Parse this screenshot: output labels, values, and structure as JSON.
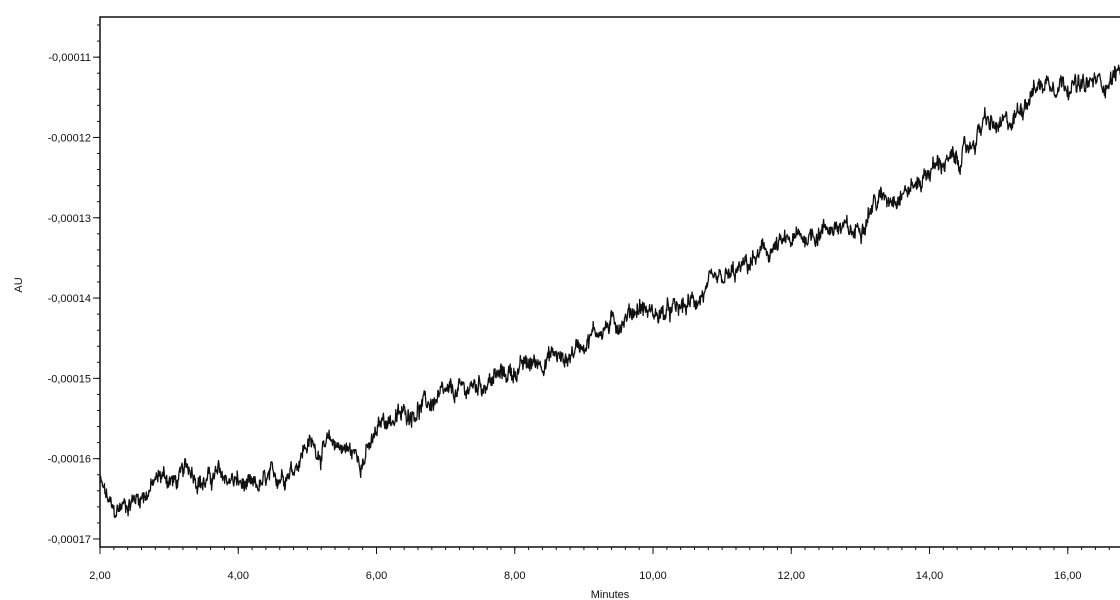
{
  "chart_data": {
    "type": "line",
    "title": "",
    "xlabel": "Minutes",
    "ylabel": "AU",
    "xlim": [
      2.0,
      16.9
    ],
    "ylim": [
      -0.000171,
      -0.000105
    ],
    "grid": false,
    "x_ticks": [
      2,
      4,
      6,
      8,
      10,
      12,
      14,
      16
    ],
    "x_tick_labels": [
      "2,00",
      "4,00",
      "6,00",
      "8,00",
      "10,00",
      "12,00",
      "14,00",
      "16,00"
    ],
    "y_ticks": [
      -0.00011,
      -0.00012,
      -0.00013,
      -0.00014,
      -0.00015,
      -0.00016,
      -0.00017
    ],
    "y_tick_labels": [
      "-0,00011",
      "-0,00012",
      "-0,00013",
      "-0,00014",
      "-0,00015",
      "-0,00016",
      "-0,00017"
    ],
    "series": [
      {
        "color": "#111111",
        "x": [
          2.0,
          2.1,
          2.2,
          2.3,
          2.5,
          2.7,
          2.9,
          3.1,
          3.3,
          3.5,
          3.7,
          4.0,
          4.2,
          4.4,
          4.6,
          4.8,
          5.0,
          5.2,
          5.4,
          5.6,
          5.8,
          5.95,
          6.1,
          6.3,
          6.5,
          6.8,
          7.1,
          7.4,
          7.7,
          8.0,
          8.3,
          8.6,
          8.7,
          8.9,
          9.2,
          9.5,
          9.8,
          10.0,
          10.2,
          10.5,
          10.8,
          11.0,
          11.2,
          11.5,
          11.7,
          12.0,
          12.3,
          12.6,
          12.9,
          13.2,
          13.5,
          13.8,
          14.0,
          14.2,
          14.4,
          14.6,
          14.8,
          15.0,
          15.2,
          15.4,
          15.5,
          15.7,
          15.8,
          16.0,
          16.2,
          16.4,
          16.6,
          16.8,
          16.9
        ],
        "y": [
          -0.000163,
          -0.000165,
          -0.000167,
          -0.000166,
          -0.000165,
          -0.000164,
          -0.000162,
          -0.000163,
          -0.000161,
          -0.000163,
          -0.000162,
          -0.000163,
          -0.000164,
          -0.000163,
          -0.000162,
          -0.000161,
          -0.000158,
          -0.000159,
          -0.000158,
          -0.000159,
          -0.00016,
          -0.000158,
          -0.000155,
          -0.000155,
          -0.000154,
          -0.000153,
          -0.000152,
          -0.000151,
          -0.00015,
          -0.000149,
          -0.000148,
          -0.000147,
          -0.000148,
          -0.000146,
          -0.000144,
          -0.000143,
          -0.000141,
          -0.000142,
          -0.000142,
          -0.000141,
          -0.000139,
          -0.000138,
          -0.000137,
          -0.000135,
          -0.000134,
          -0.000133,
          -0.000132,
          -0.000131,
          -0.000132,
          -0.000128,
          -0.000127,
          -0.000126,
          -0.000124,
          -0.000123,
          -0.000123,
          -0.000121,
          -0.000118,
          -0.000119,
          -0.000118,
          -0.000115,
          -0.000114,
          -0.000113,
          -0.000113,
          -0.000113,
          -0.000114,
          -0.000113,
          -0.000113,
          -0.000111,
          -0.000112
        ]
      }
    ]
  }
}
